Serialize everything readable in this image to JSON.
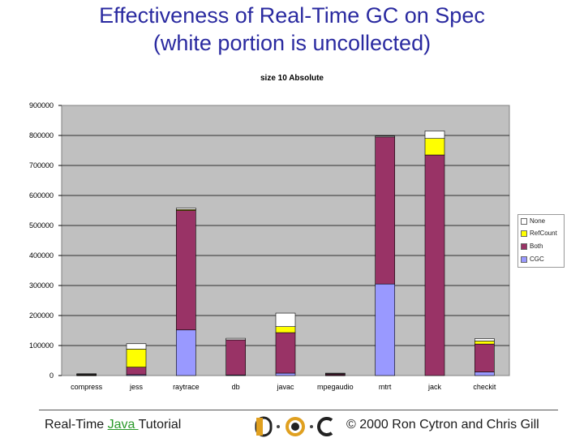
{
  "slide": {
    "title_line1": "Effectiveness of Real-Time GC on Spec",
    "title_line2": "(white portion is uncollected)"
  },
  "footer": {
    "left_prefix": "Real-Time ",
    "left_link": "Java ",
    "left_suffix": "Tutorial",
    "right": "© 2000 Ron Cytron and Chris Gill",
    "logo_text": "DOC",
    "logo_letters": [
      "D",
      "O",
      "C"
    ]
  },
  "colors": {
    "None": "#ffffff",
    "RefCount": "#ffff00",
    "Both": "#993366",
    "CGC": "#9999ff",
    "plot_bg": "#c0c0c0",
    "title": "#2a2aa0"
  },
  "chart_data": {
    "type": "bar",
    "stacked": true,
    "title": "size 10 Absolute",
    "xlabel": "",
    "ylabel": "",
    "ylim": [
      0,
      900000
    ],
    "yticks": [
      0,
      100000,
      200000,
      300000,
      400000,
      500000,
      600000,
      700000,
      800000,
      900000
    ],
    "ytick_labels": [
      "0",
      "100000",
      "200000",
      "300000",
      "400000",
      "500000",
      "600000",
      "700000",
      "800000",
      "900000"
    ],
    "grid": true,
    "legend_position": "right",
    "categories": [
      "compress",
      "jess",
      "raytrace",
      "db",
      "javac",
      "mpegaudio",
      "mtrt",
      "jack",
      "checkit"
    ],
    "series": [
      {
        "name": "CGC",
        "values": [
          1000,
          3000,
          152000,
          2000,
          8000,
          1000,
          305000,
          0,
          12000
        ]
      },
      {
        "name": "Both",
        "values": [
          2000,
          25000,
          398000,
          117000,
          135000,
          4000,
          490000,
          735000,
          93000
        ]
      },
      {
        "name": "RefCount",
        "values": [
          1000,
          60000,
          3000,
          0,
          20000,
          1000,
          0,
          55000,
          10000
        ]
      },
      {
        "name": "None",
        "values": [
          2000,
          18000,
          5000,
          5000,
          45000,
          2000,
          3000,
          25000,
          8000
        ]
      }
    ],
    "legend": [
      "None",
      "RefCount",
      "Both",
      "CGC"
    ]
  }
}
